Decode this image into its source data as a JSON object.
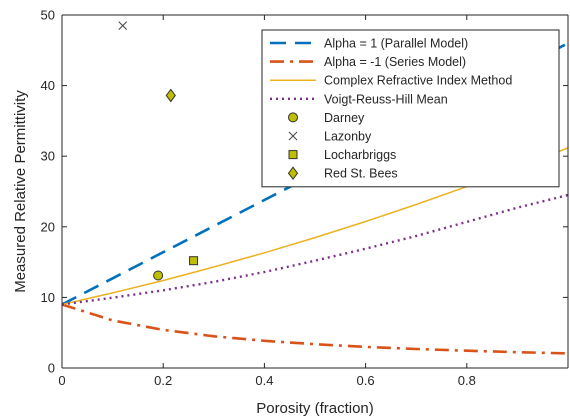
{
  "chart_data": {
    "type": "line",
    "title": "",
    "xlabel": "Porosity (fraction)",
    "ylabel": "Measured Relative Permittivity",
    "xlim": [
      0,
      1
    ],
    "ylim": [
      0,
      50
    ],
    "xticks": [
      0,
      0.2,
      0.4,
      0.6,
      0.8,
      1
    ],
    "xtick_labels": [
      "0",
      "0.2",
      "0.4",
      "0.6",
      "0.8",
      ""
    ],
    "yticks": [
      0,
      10,
      20,
      30,
      40,
      50
    ],
    "ytick_labels": [
      "0",
      "10",
      "20",
      "30",
      "40",
      "50"
    ],
    "grid": false,
    "legend_position": "top-right",
    "series": [
      {
        "name": "Alpha = 1 (Parallel Model)",
        "style": "dashed",
        "color": "#0072bd",
        "x": [
          0,
          0.2,
          0.4,
          0.6,
          0.8,
          1.0
        ],
        "y": [
          9,
          16.4,
          23.8,
          31.2,
          38.6,
          46
        ]
      },
      {
        "name": "Alpha = -1 (Series Model)",
        "style": "dashdot",
        "color": "#d95319",
        "x": [
          0,
          0.1,
          0.2,
          0.3,
          0.4,
          0.5,
          0.6,
          0.7,
          0.8,
          0.9,
          1.0
        ],
        "y": [
          9,
          6.74,
          5.39,
          4.49,
          3.85,
          3.37,
          2.99,
          2.69,
          2.45,
          2.24,
          2.07
        ]
      },
      {
        "name": "Complex Refractive Index Method",
        "style": "solid",
        "color": "#edb120",
        "x": [
          0,
          0.1,
          0.2,
          0.3,
          0.4,
          0.5,
          0.6,
          0.7,
          0.8,
          0.9,
          1.0
        ],
        "y": [
          9,
          10.64,
          12.4,
          14.3,
          16.32,
          18.47,
          20.75,
          23.16,
          25.7,
          28.37,
          31.17
        ]
      },
      {
        "name": "Voigt-Reuss-Hill Mean",
        "style": "dotted",
        "color": "#7e2f8e",
        "x": [
          0,
          0.1,
          0.2,
          0.3,
          0.4,
          0.5,
          0.6,
          0.7,
          0.8,
          0.9,
          1.0
        ],
        "y": [
          9,
          9.96,
          11.0,
          12.2,
          13.6,
          15.2,
          16.9,
          18.7,
          20.7,
          22.7,
          24.5
        ]
      }
    ],
    "points": [
      {
        "name": "Darney",
        "marker": "circle",
        "x": 0.19,
        "y": 13.1
      },
      {
        "name": "Lazonby",
        "marker": "x",
        "x": 0.12,
        "y": 48.5
      },
      {
        "name": "Locharbriggs",
        "marker": "square",
        "x": 0.26,
        "y": 15.2
      },
      {
        "name": "Red St. Bees",
        "marker": "diamond",
        "x": 0.215,
        "y": 38.6
      }
    ],
    "marker_fill": "#bfbf00"
  }
}
